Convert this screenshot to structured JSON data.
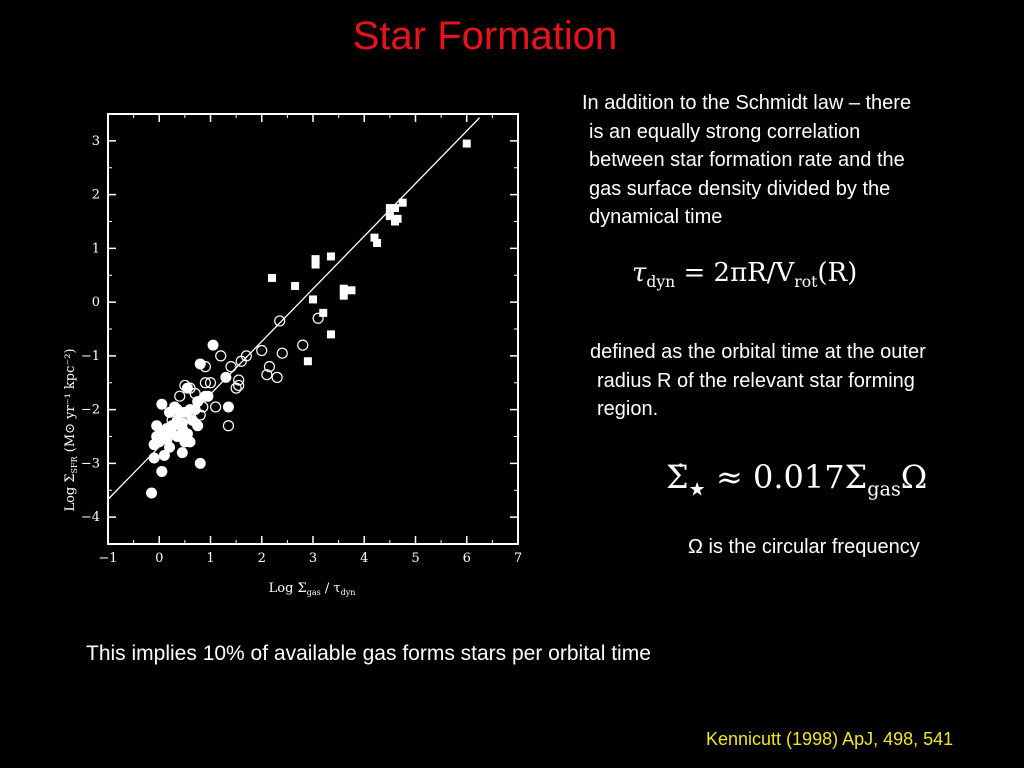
{
  "title": "Star Formation",
  "text1_lines": [
    "In addition to the Schmidt law – there",
    "is an equally strong correlation",
    "between star formation rate and the",
    "gas surface density divided by the",
    "dynamical time"
  ],
  "eq1": {
    "lhs": "τ",
    "lhs_sub": "dyn",
    "mid": " = 2πR/V",
    "mid_sub": "rot",
    "rhs": "(R)"
  },
  "text2_lines": [
    "defined as the orbital time at the outer",
    "radius R of the relevant star forming",
    "region."
  ],
  "eq2": {
    "lhs": "Σ̇",
    "lhs_sub": "★",
    "mid": " ≈ 0.017Σ",
    "mid_sub": "gas",
    "rhs": "Ω"
  },
  "omega_note": "Ω is the circular frequency",
  "bottom_note": "This implies 10% of available gas forms stars per orbital time",
  "citation": "Kennicutt (1998) ApJ, 498, 541",
  "colors": {
    "title": "#e8121c",
    "citation": "#f5e51a",
    "background": "#000000",
    "ink": "#ffffff"
  },
  "chart_data": {
    "type": "scatter",
    "xlabel": {
      "prefix": "Log Σ",
      "sub": "gas",
      "suffix": " / τ",
      "sub2": "dyn"
    },
    "ylabel": {
      "prefix": "Log Σ",
      "sub": "SFR",
      "suffix": "  (M⊙ yr⁻¹ kpc⁻²)"
    },
    "xlim": [
      -1,
      7
    ],
    "ylim": [
      -4.5,
      3.5
    ],
    "xticks": [
      -1,
      0,
      1,
      2,
      3,
      4,
      5,
      6,
      7
    ],
    "yticks": [
      -4,
      -3,
      -2,
      -1,
      0,
      1,
      2,
      3
    ],
    "fit_line": {
      "x": [
        -1,
        6.25
      ],
      "y": [
        -3.67,
        3.43
      ]
    },
    "series": [
      {
        "marker": "filled-square",
        "points": [
          [
            6.0,
            2.95
          ],
          [
            4.75,
            1.85
          ],
          [
            4.6,
            1.75
          ],
          [
            4.5,
            1.75
          ],
          [
            4.5,
            1.6
          ],
          [
            4.6,
            1.5
          ],
          [
            4.65,
            1.55
          ],
          [
            4.2,
            1.2
          ],
          [
            4.25,
            1.1
          ],
          [
            3.35,
            0.85
          ],
          [
            3.05,
            0.8
          ],
          [
            3.05,
            0.7
          ],
          [
            2.2,
            0.45
          ],
          [
            2.65,
            0.3
          ],
          [
            3.6,
            0.25
          ],
          [
            3.75,
            0.22
          ],
          [
            3.6,
            0.12
          ],
          [
            3.0,
            0.05
          ],
          [
            3.2,
            -0.2
          ],
          [
            3.35,
            -0.6
          ],
          [
            2.9,
            -1.1
          ]
        ]
      },
      {
        "marker": "open-circle",
        "points": [
          [
            3.1,
            -0.3
          ],
          [
            2.35,
            -0.35
          ],
          [
            2.8,
            -0.8
          ],
          [
            2.4,
            -0.95
          ],
          [
            2.0,
            -0.9
          ],
          [
            1.7,
            -1.0
          ],
          [
            1.6,
            -1.1
          ],
          [
            1.4,
            -1.2
          ],
          [
            2.15,
            -1.2
          ],
          [
            1.55,
            -1.45
          ],
          [
            2.1,
            -1.35
          ],
          [
            2.3,
            -1.4
          ],
          [
            1.5,
            -1.6
          ],
          [
            0.9,
            -1.5
          ],
          [
            0.9,
            -1.2
          ],
          [
            1.35,
            -2.3
          ],
          [
            1.2,
            -1.0
          ],
          [
            1.0,
            -1.5
          ],
          [
            0.85,
            -1.95
          ],
          [
            0.7,
            -1.7
          ],
          [
            0.6,
            -1.6
          ],
          [
            0.5,
            -1.55
          ],
          [
            0.4,
            -1.75
          ],
          [
            0.35,
            -2.0
          ],
          [
            0.25,
            -2.2
          ],
          [
            1.55,
            -1.55
          ],
          [
            1.1,
            -1.95
          ],
          [
            0.8,
            -2.1
          ]
        ]
      },
      {
        "marker": "filled-circle",
        "points": [
          [
            1.05,
            -0.8
          ],
          [
            0.8,
            -1.15
          ],
          [
            0.95,
            -1.75
          ],
          [
            0.55,
            -1.6
          ],
          [
            0.75,
            -1.85
          ],
          [
            0.6,
            -2.0
          ],
          [
            0.5,
            -2.05
          ],
          [
            0.45,
            -2.25
          ],
          [
            0.35,
            -2.2
          ],
          [
            0.25,
            -2.3
          ],
          [
            0.15,
            -2.35
          ],
          [
            0.05,
            -2.4
          ],
          [
            -0.05,
            -2.5
          ],
          [
            -0.1,
            -2.65
          ],
          [
            0.0,
            -2.6
          ],
          [
            0.1,
            -2.85
          ],
          [
            0.05,
            -3.15
          ],
          [
            -0.1,
            -2.9
          ],
          [
            0.25,
            -2.45
          ],
          [
            0.35,
            -2.5
          ],
          [
            0.55,
            -2.45
          ],
          [
            0.6,
            -2.6
          ],
          [
            0.45,
            -2.8
          ],
          [
            0.2,
            -2.7
          ],
          [
            0.75,
            -2.3
          ],
          [
            0.65,
            -2.2
          ],
          [
            0.4,
            -2.05
          ],
          [
            0.3,
            -1.95
          ],
          [
            0.05,
            -1.9
          ],
          [
            0.2,
            -2.05
          ],
          [
            0.8,
            -3.0
          ],
          [
            -0.15,
            -3.55
          ],
          [
            1.35,
            -1.95
          ],
          [
            1.3,
            -1.4
          ],
          [
            0.45,
            -2.35
          ],
          [
            0.9,
            -1.75
          ],
          [
            0.7,
            -2.0
          ],
          [
            0.15,
            -2.55
          ],
          [
            0.5,
            -2.6
          ],
          [
            -0.05,
            -2.3
          ]
        ]
      }
    ]
  }
}
